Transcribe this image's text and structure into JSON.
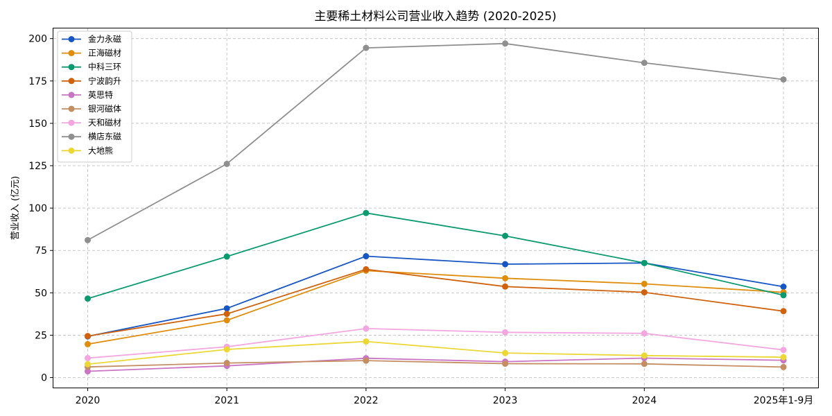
{
  "chart_data": {
    "type": "line",
    "title": "主要稀土材料公司营业收入趋势 (2020-2025)",
    "ylabel": "营业收入 (亿元)",
    "xlabel": "",
    "categories": [
      "2020",
      "2021",
      "2022",
      "2023",
      "2024",
      "2025年1-9月"
    ],
    "ylim": [
      -5.9,
      206
    ],
    "yticks": [
      0,
      25,
      50,
      75,
      100,
      125,
      150,
      175,
      200
    ],
    "grid": true,
    "legend_position": "top-left",
    "series": [
      {
        "name": "金力永磁",
        "color": "#1555c4",
        "values": [
          24.3,
          40.8,
          71.6,
          66.9,
          67.6,
          53.6
        ]
      },
      {
        "name": "正海磁材",
        "color": "#e08d0b",
        "values": [
          19.7,
          33.8,
          63.1,
          58.6,
          55.3,
          50.3
        ]
      },
      {
        "name": "中科三环",
        "color": "#0a9a70",
        "values": [
          46.6,
          71.4,
          97.1,
          83.6,
          67.6,
          48.6
        ]
      },
      {
        "name": "宁波韵升",
        "color": "#d1620c",
        "values": [
          24.5,
          37.6,
          63.9,
          53.7,
          50.3,
          39.2
        ]
      },
      {
        "name": "英思特",
        "color": "#c974c4",
        "values": [
          3.7,
          6.9,
          11.4,
          9.4,
          11.5,
          10.2
        ]
      },
      {
        "name": "银河磁体",
        "color": "#c48e62",
        "values": [
          6.3,
          8.6,
          10.0,
          8.2,
          8.1,
          6.2
        ]
      },
      {
        "name": "天和磁材",
        "color": "#f3a6e0",
        "values": [
          11.5,
          18.2,
          28.9,
          26.7,
          26.1,
          16.3
        ]
      },
      {
        "name": "横店东磁",
        "color": "#8f8f8f",
        "values": [
          81.1,
          126.1,
          194.5,
          197.1,
          185.7,
          175.9
        ]
      },
      {
        "name": "大地熊",
        "color": "#ecd835",
        "values": [
          7.9,
          16.6,
          21.3,
          14.5,
          13.0,
          12.0
        ]
      }
    ]
  }
}
